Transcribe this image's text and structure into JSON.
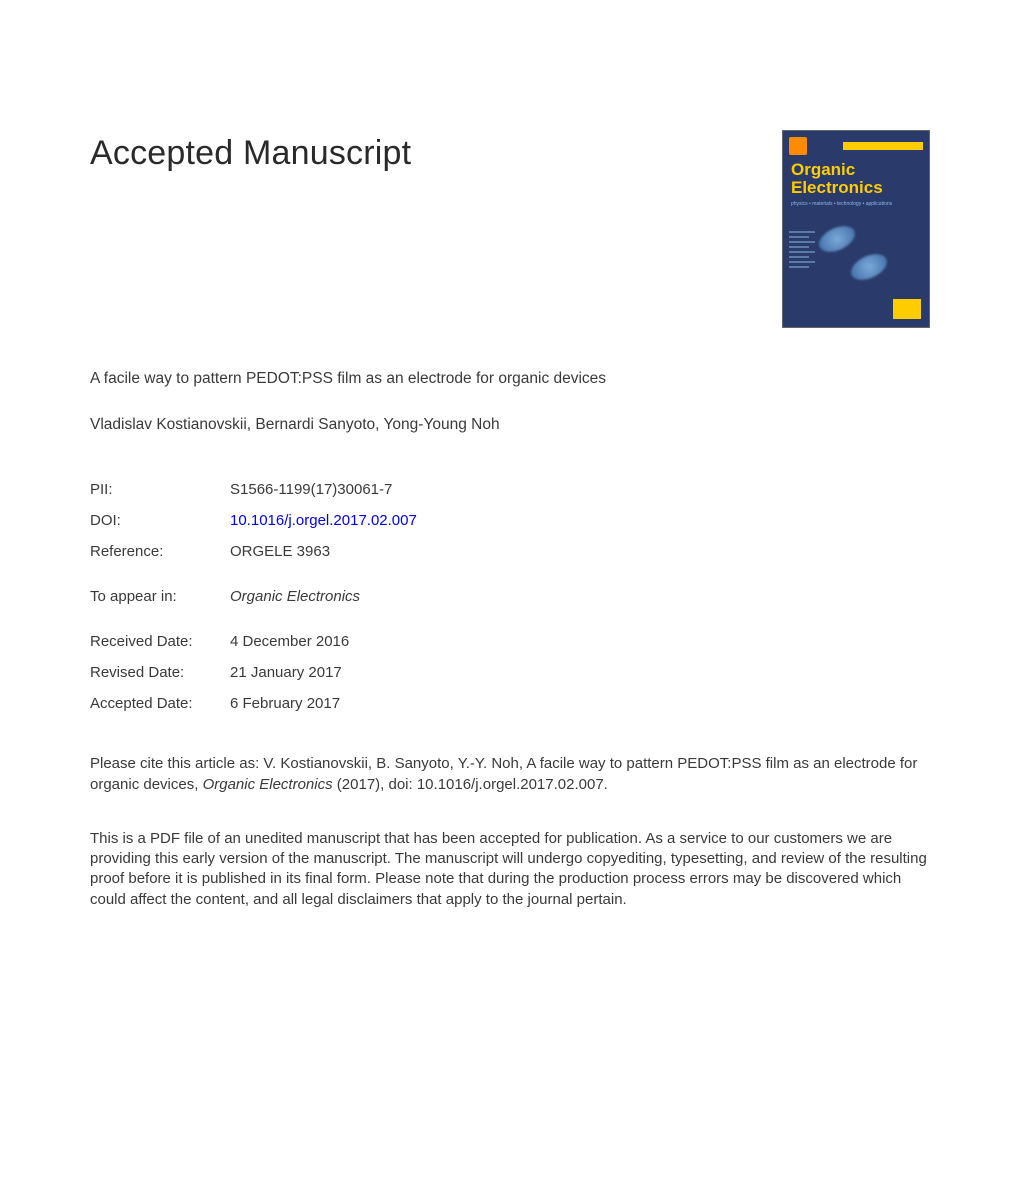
{
  "header": {
    "title": "Accepted Manuscript"
  },
  "cover": {
    "journal_title": "Organic Electronics",
    "subtitle": "physics • materials • technology • applications",
    "background_color": "#2a3a6a",
    "accent_color": "#ffcc00",
    "logo_color": "#ff8c00"
  },
  "article": {
    "title": "A facile way to pattern PEDOT:PSS film as an electrode for organic devices",
    "authors": "Vladislav Kostianovskii, Bernardi Sanyoto, Yong-Young Noh"
  },
  "meta": {
    "pii_label": "PII:",
    "pii_value": "S1566-1199(17)30061-7",
    "doi_label": "DOI:",
    "doi_value": "10.1016/j.orgel.2017.02.007",
    "reference_label": "Reference:",
    "reference_value": "ORGELE 3963",
    "appear_label": "To appear in:",
    "appear_value": "Organic Electronics",
    "received_label": "Received Date:",
    "received_value": "4 December 2016",
    "revised_label": "Revised Date:",
    "revised_value": "21 January 2017",
    "accepted_label": "Accepted Date:",
    "accepted_value": "6 February 2017"
  },
  "citation": {
    "prefix": "Please cite this article as: V. Kostianovskii, B. Sanyoto, Y.-Y. Noh, A facile way to pattern PEDOT:PSS film as an electrode for organic devices, ",
    "journal_italic": "Organic Electronics",
    "suffix": " (2017), doi: 10.1016/j.orgel.2017.02.007."
  },
  "disclaimer": {
    "text": "This is a PDF file of an unedited manuscript that has been accepted for publication. As a service to our customers we are providing this early version of the manuscript. The manuscript will undergo copyediting, typesetting, and review of the resulting proof before it is published in its final form. Please note that during the production process errors may be discovered which could affect the content, and all legal disclaimers that apply to the journal pertain."
  },
  "colors": {
    "text": "#3a3a3a",
    "link": "#0000ee",
    "background": "#ffffff"
  }
}
